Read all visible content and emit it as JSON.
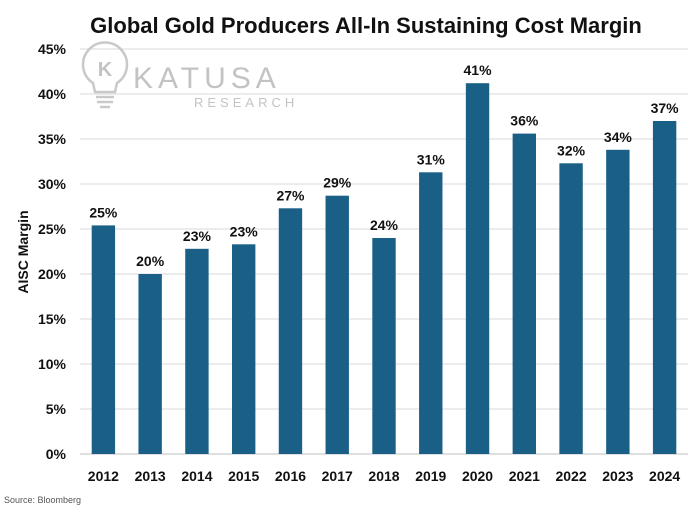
{
  "chart_data": {
    "type": "bar",
    "title": "Global Gold Producers All-In Sustaining Cost Margin",
    "xlabel": "",
    "ylabel": "AISC Margin",
    "categories": [
      "2012",
      "2013",
      "2014",
      "2015",
      "2016",
      "2017",
      "2018",
      "2019",
      "2020",
      "2021",
      "2022",
      "2023",
      "2024"
    ],
    "values": [
      25.4,
      20.0,
      22.8,
      23.3,
      27.3,
      28.7,
      24.0,
      31.3,
      41.2,
      35.6,
      32.3,
      33.8,
      37.0
    ],
    "data_labels": [
      "25%",
      "20%",
      "23%",
      "23%",
      "27%",
      "29%",
      "24%",
      "31%",
      "41%",
      "36%",
      "32%",
      "34%",
      "37%"
    ],
    "yticks": [
      "0%",
      "5%",
      "10%",
      "15%",
      "20%",
      "25%",
      "30%",
      "35%",
      "40%",
      "45%"
    ],
    "ylim": [
      0,
      45
    ],
    "grid": true,
    "bar_color": "#1a5f86",
    "grid_color": "#d9d9d9"
  },
  "logo": {
    "line1": "KATUSA",
    "line2": "RESEARCH",
    "mark": "K"
  },
  "source": "Source: Bloomberg"
}
